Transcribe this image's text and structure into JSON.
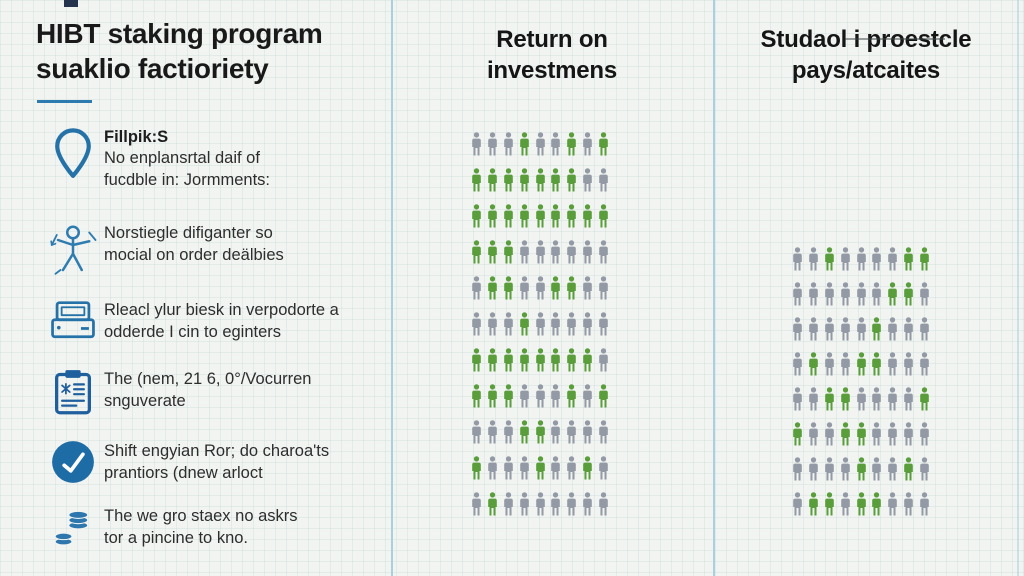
{
  "colors": {
    "accent_blue": "#2472a8",
    "underline_blue": "#2e7bb0",
    "person_green": "#5a9e3c",
    "person_gray": "#949aa5",
    "divider_blue": "#aacfdd",
    "text_dark": "#1d1d1d"
  },
  "left": {
    "title_line1": "HIBT staking program",
    "title_line2": "suaklio factioriety",
    "items": [
      {
        "icon": "location-pin-icon",
        "heading": "Fillpik:S",
        "line1": "No enplansrtal daif of",
        "line2": "fucdble in: Jormments:"
      },
      {
        "icon": "network-figure-icon",
        "line1": "Norstiegle difiganter so",
        "line2": "mocial on order deälbies"
      },
      {
        "icon": "printer-icon",
        "line1": "Rleacl ylur biesk in verpodorte a",
        "line2": "odderde I cin to eginters"
      },
      {
        "icon": "clipboard-icon",
        "line1": "The (nem, 21 6, 0°/Vocurren",
        "line2": "snguverate"
      },
      {
        "icon": "check-circle-icon",
        "line1": "Shift engyian Ror; do charoa'ts",
        "line2": "prantiors (dnew arloct"
      },
      {
        "icon": "coins-icon",
        "line1": "The we gro staex no askrs",
        "line2": "tor a pincine to kno."
      }
    ]
  },
  "middle": {
    "title_line1": "Return on",
    "title_line2": "investmens"
  },
  "right": {
    "title_line1": "Studaol i proestcle",
    "title_line2": "pays/atcaites"
  },
  "chart_data": [
    {
      "type": "pictograph",
      "title": "Return on investmens",
      "unit": "person-icon",
      "columns": 9,
      "rows": 11,
      "legend": "green = invested/return, gray = baseline",
      "cell_colors": {
        "1": "#5a9e3c",
        "0": "#949aa5"
      },
      "pattern": [
        "000100101",
        "111111100",
        "111111111",
        "111000000",
        "011001100",
        "000100000",
        "111111110",
        "111000101",
        "000110000",
        "100010010",
        "010000000"
      ]
    },
    {
      "type": "pictograph",
      "title": "Studaol i proestcle pays/atcaites",
      "unit": "person-icon",
      "columns": 9,
      "rows": 8,
      "legend": "green = payout recipients, gray = others",
      "cell_colors": {
        "1": "#5a9e3c",
        "0": "#949aa5"
      },
      "pattern": [
        "001000011",
        "000000110",
        "000001000",
        "010011000",
        "001100001",
        "100110000",
        "000010010",
        "011011000"
      ]
    }
  ]
}
